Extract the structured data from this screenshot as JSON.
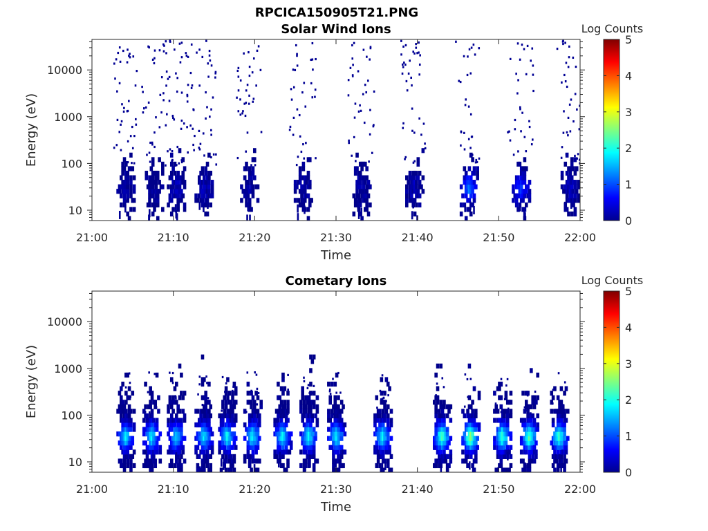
{
  "figure": {
    "title": "RPCICA150905T21.PNG"
  },
  "chart_data": [
    {
      "type": "heatmap",
      "title": "Solar Wind Ions",
      "xlabel": "Time",
      "ylabel": "Energy (eV)",
      "x_ticks": [
        "21:00",
        "21:10",
        "21:20",
        "21:30",
        "21:40",
        "21:50",
        "22:00"
      ],
      "y_ticks": [
        "10",
        "100",
        "1000",
        "10000"
      ],
      "y_scale": "log",
      "ylim": [
        6,
        45000
      ],
      "xlim": [
        "21:00",
        "22:00"
      ],
      "colorbar": {
        "label": "Log Counts",
        "ticks": [
          "0",
          "1",
          "2",
          "3",
          "4",
          "5"
        ],
        "range": [
          0,
          5
        ],
        "colormap": "jet"
      },
      "sweeps": [
        {
          "center_min": 4.0,
          "core_log": 0.2,
          "halo": 0.8,
          "cometary": false
        },
        {
          "center_min": 7.5,
          "core_log": 0.1,
          "halo": 0.6,
          "cometary": false
        },
        {
          "center_min": 10.2,
          "core_log": 0.3,
          "halo": 0.9,
          "cometary": false
        },
        {
          "center_min": 13.6,
          "core_log": 0.3,
          "halo": 0.9,
          "cometary": false
        },
        {
          "center_min": 19.2,
          "core_log": 0.2,
          "halo": 0.7,
          "cometary": false
        },
        {
          "center_min": 25.8,
          "core_log": 0.2,
          "halo": 0.7,
          "cometary": false
        },
        {
          "center_min": 33.0,
          "core_log": 0.2,
          "halo": 0.7,
          "cometary": false
        },
        {
          "center_min": 39.5,
          "core_log": 0.3,
          "halo": 0.7,
          "cometary": false
        },
        {
          "center_min": 46.2,
          "core_log": 1.2,
          "halo": 0.6,
          "cometary": false
        },
        {
          "center_min": 52.6,
          "core_log": 0.9,
          "halo": 0.6,
          "cometary": false
        },
        {
          "center_min": 58.6,
          "core_log": 0.3,
          "halo": 0.7,
          "cometary": false
        }
      ],
      "peak_energy_ev": 30
    },
    {
      "type": "heatmap",
      "title": "Cometary Ions",
      "xlabel": "Time",
      "ylabel": "Energy (eV)",
      "x_ticks": [
        "21:00",
        "21:10",
        "21:20",
        "21:30",
        "21:40",
        "21:50",
        "22:00"
      ],
      "y_ticks": [
        "10",
        "100",
        "1000",
        "10000"
      ],
      "y_scale": "log",
      "ylim": [
        6,
        45000
      ],
      "xlim": [
        "21:00",
        "22:00"
      ],
      "colorbar": {
        "label": "Log Counts",
        "ticks": [
          "0",
          "1",
          "2",
          "3",
          "4",
          "5"
        ],
        "range": [
          0,
          5
        ],
        "colormap": "jet"
      },
      "sweeps": [
        {
          "center_min": 4.0,
          "core_log": 1.8,
          "halo": 0.5,
          "cometary": true
        },
        {
          "center_min": 7.2,
          "core_log": 1.8,
          "halo": 0.5,
          "cometary": true
        },
        {
          "center_min": 10.2,
          "core_log": 1.7,
          "halo": 0.5,
          "cometary": true
        },
        {
          "center_min": 13.6,
          "core_log": 1.8,
          "halo": 0.5,
          "cometary": true
        },
        {
          "center_min": 16.5,
          "core_log": 1.9,
          "halo": 0.6,
          "cometary": true
        },
        {
          "center_min": 19.6,
          "core_log": 1.9,
          "halo": 0.7,
          "cometary": true
        },
        {
          "center_min": 23.3,
          "core_log": 1.9,
          "halo": 0.6,
          "cometary": true
        },
        {
          "center_min": 26.5,
          "core_log": 1.9,
          "halo": 0.6,
          "cometary": true
        },
        {
          "center_min": 29.9,
          "core_log": 1.9,
          "halo": 0.7,
          "cometary": true
        },
        {
          "center_min": 35.6,
          "core_log": 1.9,
          "halo": 0.7,
          "cometary": true
        },
        {
          "center_min": 42.9,
          "core_log": 2.3,
          "halo": 0.4,
          "cometary": true
        },
        {
          "center_min": 46.4,
          "core_log": 2.6,
          "halo": 0.4,
          "cometary": true
        },
        {
          "center_min": 50.3,
          "core_log": 2.2,
          "halo": 0.5,
          "cometary": true
        },
        {
          "center_min": 53.6,
          "core_log": 2.3,
          "halo": 0.5,
          "cometary": true
        },
        {
          "center_min": 57.3,
          "core_log": 2.2,
          "halo": 0.5,
          "cometary": true
        }
      ],
      "peak_energy_ev": 35
    }
  ]
}
